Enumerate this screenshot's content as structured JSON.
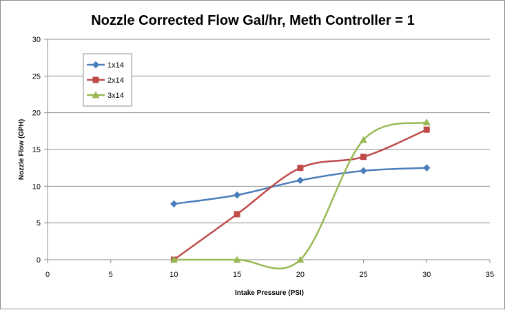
{
  "chart_data": {
    "type": "line",
    "title": "Nozzle Corrected Flow Gal/hr, Meth Controller = 1",
    "xlabel": "Intake Pressure (PSI)",
    "ylabel": "Nozzle Flow (GPH)",
    "xlim": [
      0,
      35
    ],
    "ylim": [
      0,
      30
    ],
    "x_ticks": [
      0,
      5,
      10,
      15,
      20,
      25,
      30,
      35
    ],
    "y_ticks": [
      0,
      5,
      10,
      15,
      20,
      25,
      30
    ],
    "grid": "horizontal",
    "legend_position": "top-left",
    "smoothed": true,
    "series": [
      {
        "name": "1x14",
        "color": "#4a7ebb",
        "marker": "diamond",
        "x": [
          10,
          15,
          20,
          25,
          30
        ],
        "values": [
          7.6,
          8.8,
          10.8,
          12.1,
          12.5
        ]
      },
      {
        "name": "2x14",
        "color": "#be4b48",
        "marker": "square",
        "x": [
          10,
          15,
          20,
          25,
          30
        ],
        "values": [
          0,
          6.2,
          12.5,
          14.0,
          17.7
        ]
      },
      {
        "name": "3x14",
        "color": "#98b954",
        "marker": "triangle",
        "x": [
          10,
          15,
          20,
          25,
          30
        ],
        "values": [
          0,
          0,
          0,
          16.3,
          18.7
        ]
      }
    ]
  }
}
